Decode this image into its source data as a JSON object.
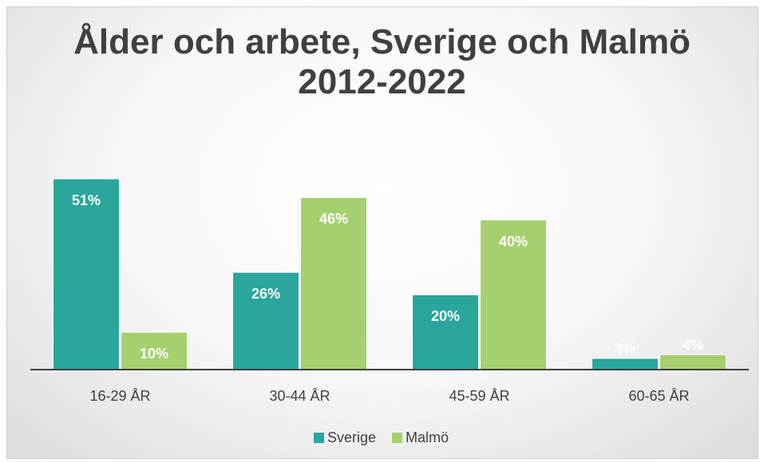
{
  "chart_data": {
    "type": "bar",
    "title": "Ålder och arbete, Sverige och Malmö 2012-2022",
    "categories": [
      "16-29 ÅR",
      "30-44 ÅR",
      "45-59 ÅR",
      "60-65 ÅR"
    ],
    "series": [
      {
        "name": "Sverige",
        "color": "#2aa69c",
        "values": [
          51,
          26,
          20,
          3
        ],
        "value_labels": [
          "51%",
          "26%",
          "20%",
          "3%"
        ]
      },
      {
        "name": "Malmö",
        "color": "#a4d070",
        "values": [
          10,
          46,
          40,
          4
        ],
        "value_labels": [
          "10%",
          "46%",
          "40%",
          "4%"
        ]
      }
    ],
    "legend": "bottom"
  }
}
